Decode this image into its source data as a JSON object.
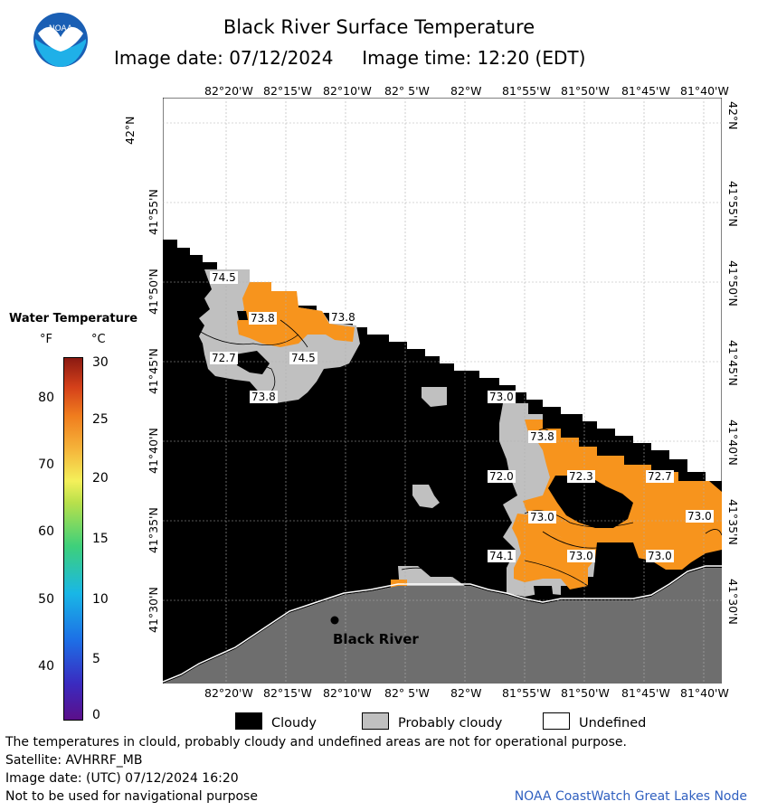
{
  "title": "Black River Surface Temperature",
  "subtitle_date_label": "Image date: 07/12/2024",
  "subtitle_time_label": "Image time: 12:20 (EDT)",
  "logo_text": "NOAA",
  "lon_labels": [
    "82°20'W",
    "82°15'W",
    "82°10'W",
    "82° 5'W",
    "82°W",
    "81°55'W",
    "81°50'W",
    "81°45'W",
    "81°40'W"
  ],
  "lat_labels": [
    "42°N",
    "41°55'N",
    "41°50'N",
    "41°45'N",
    "41°40'N",
    "41°35'N",
    "41°30'N"
  ],
  "place_label": "Black River",
  "temperature_labels": [
    "74.5",
    "73.8",
    "73.8",
    "72.7",
    "74.5",
    "73.8",
    "73.0",
    "73.8",
    "72.0",
    "72.3",
    "72.7",
    "73.0",
    "73.0",
    "74.1",
    "73.0",
    "73.0"
  ],
  "legend": {
    "title": "Water Temperature",
    "unit_f": "°F",
    "unit_c": "°C",
    "f_ticks": [
      "80",
      "70",
      "60",
      "50",
      "40"
    ],
    "c_ticks": [
      "30",
      "25",
      "20",
      "15",
      "10",
      "5",
      "0"
    ],
    "colors": {
      "land": "#6e6e6e",
      "cloudy": "#000000",
      "probably_cloudy": "#c0c0c0",
      "undefined": "#ffffff",
      "warm": "#f7941d"
    }
  },
  "key": {
    "cloudy": "Cloudy",
    "probably_cloudy": "Probably cloudy",
    "undefined": "Undefined"
  },
  "footer": {
    "disclaimer": "The temperatures in clould, probably cloudy and undefined areas are not for operational purpose.",
    "satellite": "Satellite: AVHRRF_MB",
    "image_date": "Image date: (UTC) 07/12/2024  16:20",
    "nav": "Not to be used for navigational purpose",
    "credit": "NOAA CoastWatch Great Lakes Node"
  }
}
